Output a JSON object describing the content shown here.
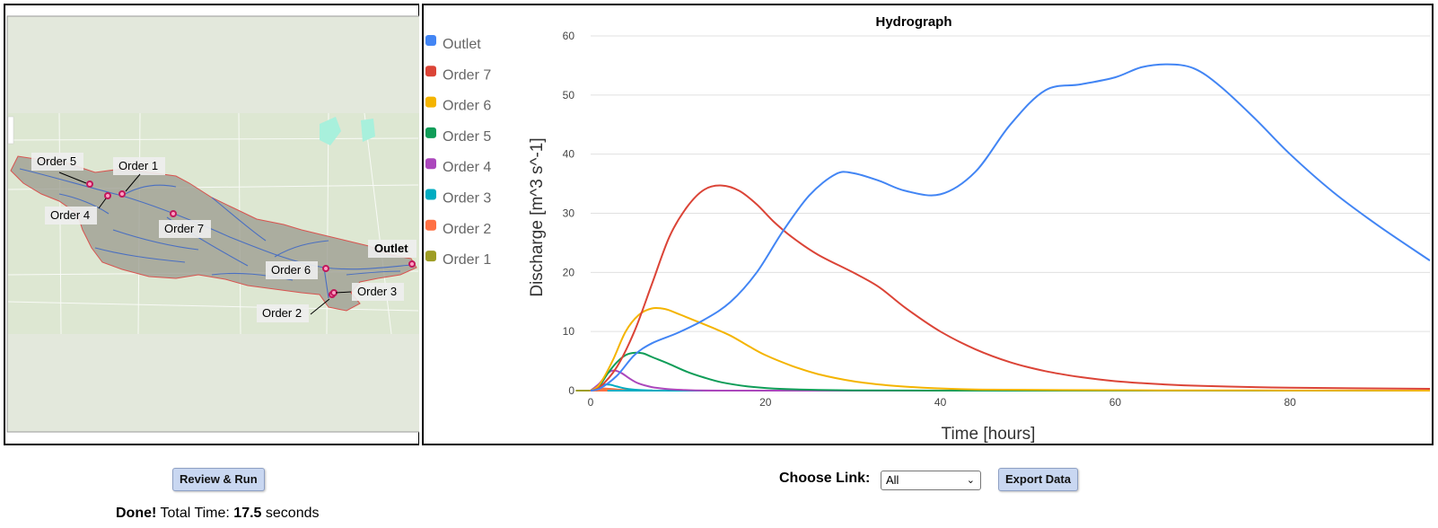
{
  "chart_data": {
    "type": "line",
    "title": "Hydrograph",
    "xlabel": "Time [hours]",
    "ylabel": "Discharge [m^3 s^-1]",
    "xlim": [
      0,
      96
    ],
    "ylim": [
      0,
      60
    ],
    "xticks": [
      0,
      20,
      40,
      60,
      80
    ],
    "yticks": [
      0,
      10,
      20,
      30,
      40,
      50,
      60
    ],
    "grid": true,
    "legend_placement": "left",
    "series": [
      {
        "name": "Outlet",
        "color": "#4285f4",
        "x": [
          0,
          1,
          3,
          5,
          7,
          10,
          13,
          16,
          19,
          22,
          25,
          28,
          30,
          33,
          36,
          40,
          44,
          48,
          52,
          56,
          60,
          63,
          66,
          69,
          72,
          76,
          80,
          85,
          90,
          96
        ],
        "y": [
          0,
          0.3,
          2.5,
          6,
          8,
          9.8,
          12,
          15,
          20,
          27,
          33,
          36.6,
          36.8,
          35.5,
          33.8,
          33.2,
          37,
          45,
          50.8,
          51.8,
          53,
          54.7,
          55.2,
          54.5,
          51.5,
          46,
          40,
          33.5,
          28,
          22
        ]
      },
      {
        "name": "Order 7",
        "color": "#db4437",
        "x": [
          0,
          1,
          3,
          5,
          7,
          9,
          11,
          13,
          15,
          17,
          19,
          21,
          23,
          26,
          30,
          33,
          36,
          40,
          44,
          48,
          52,
          56,
          60,
          65,
          70,
          80,
          96
        ],
        "y": [
          0,
          0.5,
          4,
          10,
          18,
          26,
          31,
          34,
          34.7,
          33.8,
          31.5,
          28.5,
          26,
          23,
          20,
          17.5,
          14,
          10,
          7,
          4.8,
          3.3,
          2.3,
          1.6,
          1.1,
          0.8,
          0.5,
          0.3
        ]
      },
      {
        "name": "Order 6",
        "color": "#f4b400",
        "x": [
          0,
          1,
          2.5,
          4,
          5.5,
          7,
          8.5,
          10,
          12,
          14,
          16,
          18,
          20,
          23,
          26,
          30,
          34,
          38,
          44,
          52,
          65,
          96
        ],
        "y": [
          0,
          1,
          5,
          10,
          12.8,
          13.9,
          13.8,
          13,
          11.8,
          10.6,
          9.3,
          7.6,
          6,
          4.2,
          2.8,
          1.6,
          0.9,
          0.5,
          0.2,
          0.1,
          0.05,
          0
        ]
      },
      {
        "name": "Order 5",
        "color": "#0f9d58",
        "x": [
          0,
          1,
          2,
          3,
          4,
          5,
          6,
          7,
          9,
          11,
          13,
          15,
          18,
          21,
          25,
          30,
          40,
          96
        ],
        "y": [
          0,
          0.8,
          3,
          4.8,
          6,
          6.4,
          6.3,
          5.7,
          4.5,
          3.2,
          2.2,
          1.4,
          0.7,
          0.35,
          0.15,
          0.05,
          0,
          0
        ]
      },
      {
        "name": "Order 4",
        "color": "#ab47bc",
        "x": [
          0,
          1,
          2,
          2.7,
          3.5,
          4.5,
          5.5,
          7,
          8.5,
          10,
          12,
          15,
          20,
          96
        ],
        "y": [
          0,
          1.2,
          3,
          3.4,
          3,
          2,
          1.2,
          0.6,
          0.3,
          0.15,
          0.05,
          0,
          0,
          0
        ]
      },
      {
        "name": "Order 3",
        "color": "#00acc1",
        "x": [
          0,
          0.8,
          1.5,
          2.2,
          3,
          4,
          5.5,
          7,
          9,
          96
        ],
        "y": [
          0,
          0.5,
          1,
          1,
          0.7,
          0.35,
          0.1,
          0.03,
          0,
          0
        ]
      },
      {
        "name": "Order 2",
        "color": "#ff7043",
        "x": [
          0,
          0.8,
          1.5,
          2.2,
          3,
          4,
          5.5,
          7,
          96
        ],
        "y": [
          0,
          0.2,
          0.35,
          0.3,
          0.2,
          0.1,
          0.03,
          0,
          0
        ]
      },
      {
        "name": "Order 1",
        "color": "#9e9d24",
        "x": [
          0,
          0.8,
          1.5,
          2.2,
          3,
          4,
          5.5,
          96
        ],
        "y": [
          0,
          0.1,
          0.15,
          0.12,
          0.07,
          0.03,
          0,
          0
        ]
      }
    ]
  },
  "map": {
    "labels": {
      "order5": "Order 5",
      "order1": "Order 1",
      "order4": "Order 4",
      "order7": "Order 7",
      "order6": "Order 6",
      "order3": "Order 3",
      "order2": "Order 2",
      "outlet": "Outlet"
    }
  },
  "controls": {
    "run_button": "Review & Run",
    "choose_link_label": "Choose Link:",
    "link_selected": "All",
    "export_button": "Export Data"
  },
  "status": {
    "done": "Done!",
    "prefix": "Total Time:",
    "seconds_value": "17.5",
    "suffix": "seconds"
  }
}
